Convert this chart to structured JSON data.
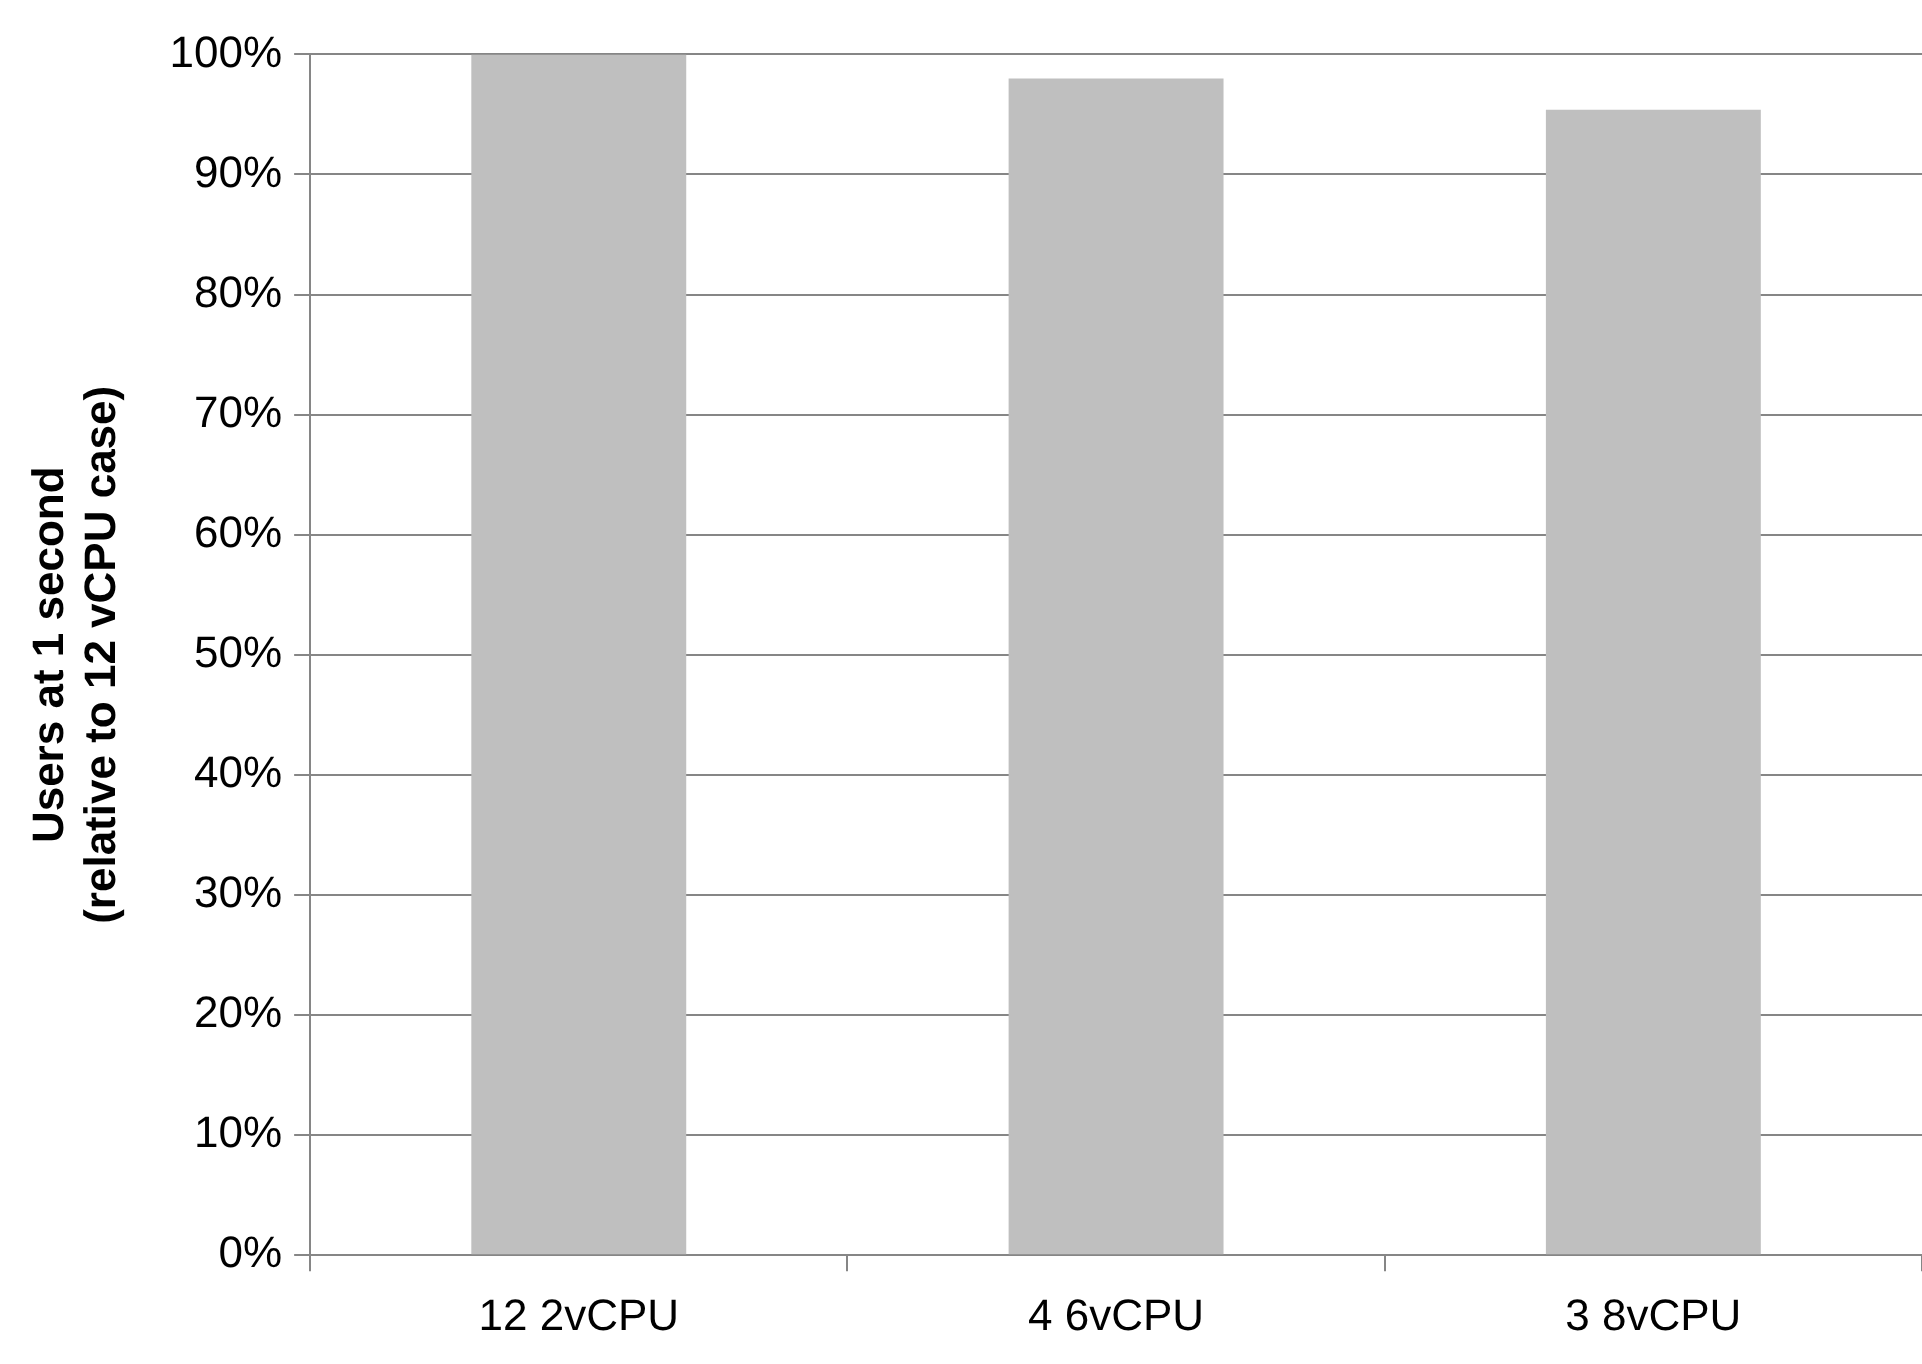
{
  "chart_data": {
    "type": "bar",
    "ylabel": "Users at 1 second\n(relative to 12 vCPU case)",
    "categories": [
      "12 2vCPU",
      "4 6vCPU",
      "3 8vCPU"
    ],
    "values": [
      100,
      98,
      95.4
    ],
    "color": "#bfbfbf",
    "ylim": [
      0,
      100
    ],
    "yticks": [
      {
        "value": 0,
        "label": "0%"
      },
      {
        "value": 10,
        "label": "10%"
      },
      {
        "value": 20,
        "label": "20%"
      },
      {
        "value": 30,
        "label": "30%"
      },
      {
        "value": 40,
        "label": "40%"
      },
      {
        "value": 50,
        "label": "50%"
      },
      {
        "value": 60,
        "label": "60%"
      },
      {
        "value": 70,
        "label": "70%"
      },
      {
        "value": 80,
        "label": "80%"
      },
      {
        "value": 90,
        "label": "90%"
      },
      {
        "value": 100,
        "label": "100%"
      }
    ],
    "grid": "y"
  }
}
